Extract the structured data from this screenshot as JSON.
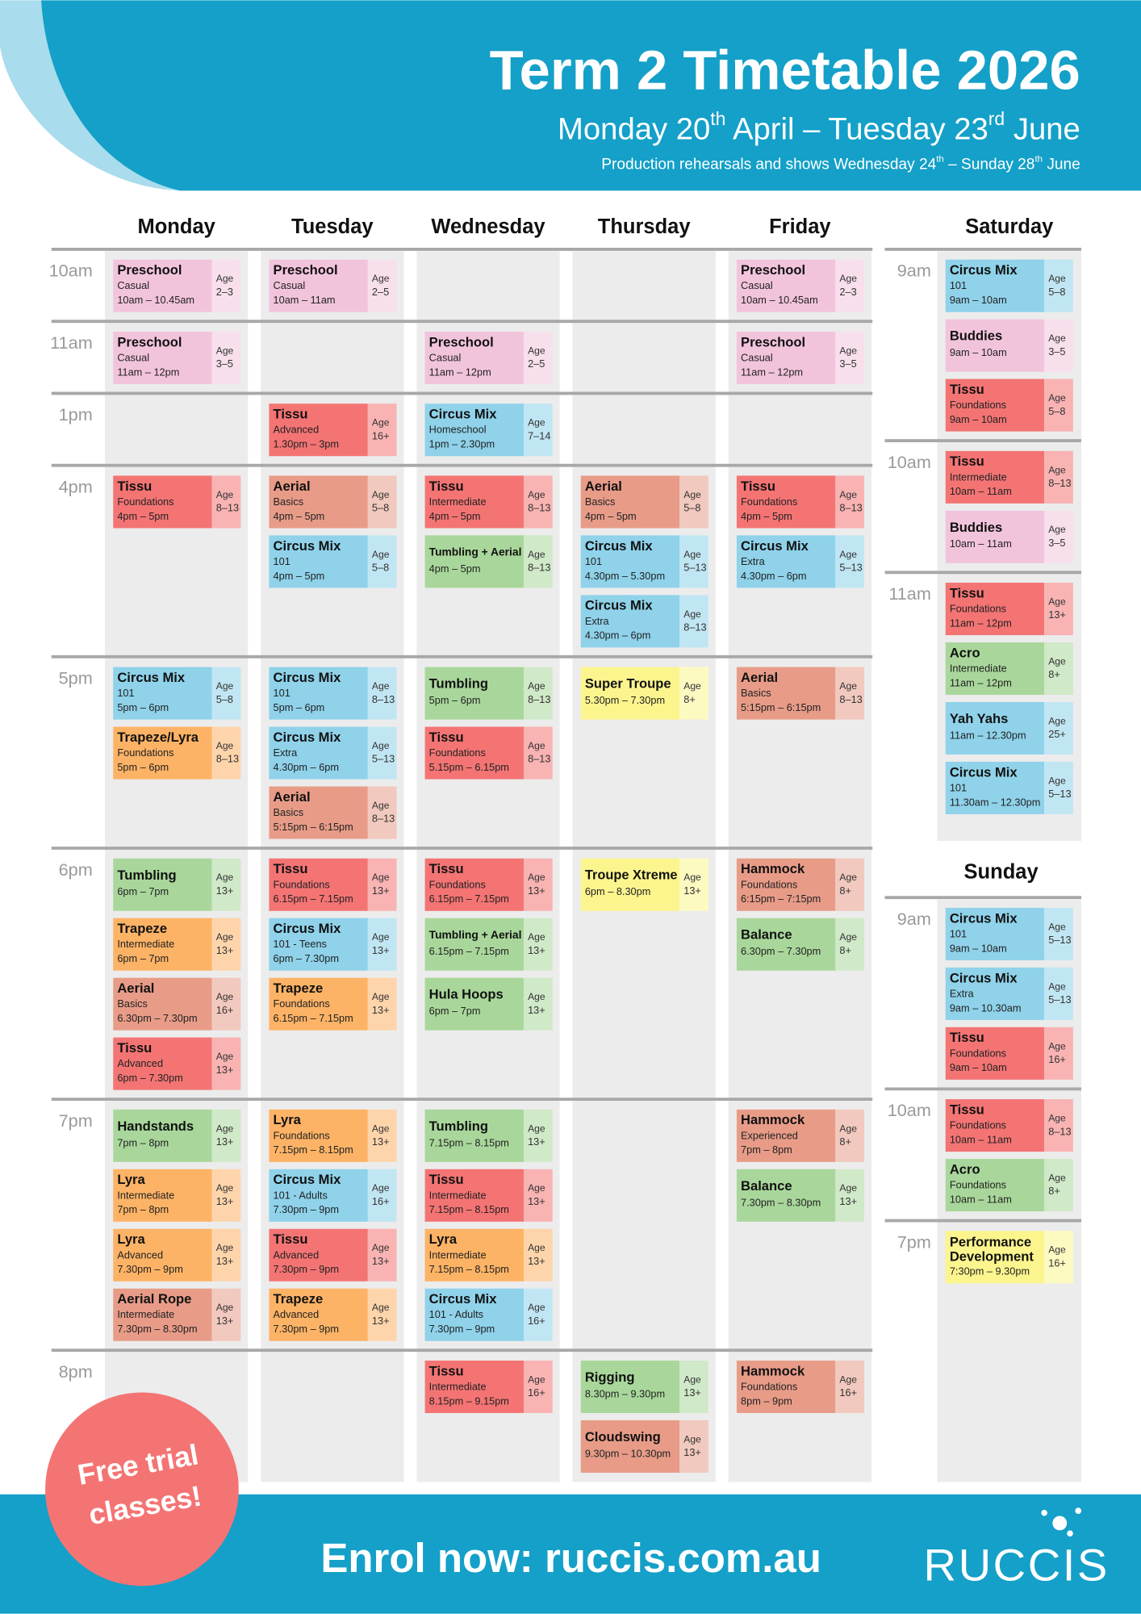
{
  "header": {
    "title": "Term 2 Timetable 2026",
    "subtitle": [
      "Monday 20",
      "th",
      " April – Tuesday 23",
      "rd",
      " June"
    ],
    "note": [
      "Production rehearsals and shows Wednesday 24",
      "th",
      " – Sunday 28",
      "th",
      " June"
    ]
  },
  "age_word": "Age",
  "weekdays": {
    "days": [
      "Monday",
      "Tuesday",
      "Wednesday",
      "Thursday",
      "Friday"
    ],
    "rows": [
      {
        "time": "10am",
        "cells": [
          [
            {
              "name": "Preschool",
              "level": "Casual",
              "time": "10am – 10.45am",
              "age": "2–3",
              "color": "#f2c4dc"
            }
          ],
          [
            {
              "name": "Preschool",
              "level": "Casual",
              "time": "10am – 11am",
              "age": "2–5",
              "color": "#f2c4dc"
            }
          ],
          [],
          [],
          [
            {
              "name": "Preschool",
              "level": "Casual",
              "time": "10am – 10.45am",
              "age": "2–3",
              "color": "#f2c4dc"
            }
          ]
        ]
      },
      {
        "time": "11am",
        "cells": [
          [
            {
              "name": "Preschool",
              "level": "Casual",
              "time": "11am – 12pm",
              "age": "3–5",
              "color": "#f2c4dc"
            }
          ],
          [],
          [
            {
              "name": "Preschool",
              "level": "Casual",
              "time": "11am – 12pm",
              "age": "2–5",
              "color": "#f2c4dc"
            }
          ],
          [],
          [
            {
              "name": "Preschool",
              "level": "Casual",
              "time": "11am – 12pm",
              "age": "3–5",
              "color": "#f2c4dc"
            }
          ]
        ]
      },
      {
        "time": "1pm",
        "cells": [
          [],
          [
            {
              "name": "Tissu",
              "level": "Advanced",
              "time": "1.30pm – 3pm",
              "age": "16+",
              "color": "#f47474"
            }
          ],
          [
            {
              "name": "Circus Mix",
              "level": "Homeschool",
              "time": "1pm – 2.30pm",
              "age": "7–14",
              "color": "#8fd2ea"
            }
          ],
          [],
          []
        ]
      },
      {
        "time": "4pm",
        "cells": [
          [
            {
              "name": "Tissu",
              "level": "Foundations",
              "time": "4pm – 5pm",
              "age": "8–13",
              "color": "#f47474"
            }
          ],
          [
            {
              "name": "Aerial",
              "level": "Basics",
              "time": "4pm – 5pm",
              "age": "5–8",
              "color": "#e89c88"
            },
            {
              "name": "Circus Mix",
              "level": "101",
              "time": "4pm – 5pm",
              "age": "5–8",
              "color": "#8fd2ea"
            }
          ],
          [
            {
              "name": "Tissu",
              "level": "Intermediate",
              "time": "4pm – 5pm",
              "age": "8–13",
              "color": "#f47474"
            },
            {
              "name": "Tumbling + Aerial",
              "time": "4pm – 5pm",
              "age": "8–13",
              "color": "#a9d79b"
            }
          ],
          [
            {
              "name": "Aerial",
              "level": "Basics",
              "time": "4pm – 5pm",
              "age": "5–8",
              "color": "#e89c88"
            },
            {
              "name": "Circus Mix",
              "level": "101",
              "time": "4.30pm – 5.30pm",
              "age": "5–13",
              "color": "#8fd2ea"
            },
            {
              "name": "Circus Mix",
              "level": "Extra",
              "time": "4.30pm – 6pm",
              "age": "8–13",
              "color": "#8fd2ea"
            }
          ],
          [
            {
              "name": "Tissu",
              "level": "Foundations",
              "time": "4pm – 5pm",
              "age": "8–13",
              "color": "#f47474"
            },
            {
              "name": "Circus Mix",
              "level": "Extra",
              "time": "4.30pm – 6pm",
              "age": "5–13",
              "color": "#8fd2ea"
            }
          ]
        ]
      },
      {
        "time": "5pm",
        "cells": [
          [
            {
              "name": "Circus Mix",
              "level": "101",
              "time": "5pm – 6pm",
              "age": "5–8",
              "color": "#8fd2ea"
            },
            {
              "name": "Trapeze/Lyra",
              "level": "Foundations",
              "time": "5pm – 6pm",
              "age": "8–13",
              "color": "#fdb366"
            }
          ],
          [
            {
              "name": "Circus Mix",
              "level": "101",
              "time": "5pm – 6pm",
              "age": "8–13",
              "color": "#8fd2ea"
            },
            {
              "name": "Circus Mix",
              "level": "Extra",
              "time": "4.30pm – 6pm",
              "age": "5–13",
              "color": "#8fd2ea"
            },
            {
              "name": "Aerial",
              "level": "Basics",
              "time": "5:15pm – 6:15pm",
              "age": "8–13",
              "color": "#e89c88"
            }
          ],
          [
            {
              "name": "Tumbling",
              "time": "5pm – 6pm",
              "age": "8–13",
              "color": "#a9d79b"
            },
            {
              "name": "Tissu",
              "level": "Foundations",
              "time": "5.15pm – 6.15pm",
              "age": "8–13",
              "color": "#f47474"
            }
          ],
          [
            {
              "name": "Super Troupe",
              "time": "5.30pm – 7.30pm",
              "age": "8+",
              "color": "#fcf58e"
            }
          ],
          [
            {
              "name": "Aerial",
              "level": "Basics",
              "time": "5:15pm – 6:15pm",
              "age": "8–13",
              "color": "#e89c88"
            }
          ]
        ]
      },
      {
        "time": "6pm",
        "cells": [
          [
            {
              "name": "Tumbling",
              "time": "6pm – 7pm",
              "age": "13+",
              "color": "#a9d79b"
            },
            {
              "name": "Trapeze",
              "level": "Intermediate",
              "time": "6pm – 7pm",
              "age": "13+",
              "color": "#fdb366"
            },
            {
              "name": "Aerial",
              "level": "Basics",
              "time": "6.30pm – 7.30pm",
              "age": "16+",
              "color": "#e89c88"
            },
            {
              "name": "Tissu",
              "level": "Advanced",
              "time": "6pm – 7.30pm",
              "age": "13+",
              "color": "#f47474"
            }
          ],
          [
            {
              "name": "Tissu",
              "level": "Foundations",
              "time": "6.15pm – 7.15pm",
              "age": "13+",
              "color": "#f47474"
            },
            {
              "name": "Circus Mix",
              "level": "101 - Teens",
              "time": "6pm – 7.30pm",
              "age": "13+",
              "color": "#8fd2ea"
            },
            {
              "name": "Trapeze",
              "level": "Foundations",
              "time": "6.15pm – 7.15pm",
              "age": "13+",
              "color": "#fdb366"
            }
          ],
          [
            {
              "name": "Tissu",
              "level": "Foundations",
              "time": "6.15pm – 7.15pm",
              "age": "13+",
              "color": "#f47474"
            },
            {
              "name": "Tumbling + Aerial",
              "time": "6.15pm – 7.15pm",
              "age": "13+",
              "color": "#a9d79b"
            },
            {
              "name": "Hula Hoops",
              "time": "6pm – 7pm",
              "age": "13+",
              "color": "#a9d79b"
            }
          ],
          [
            {
              "name": "Troupe Xtreme",
              "time": "6pm – 8.30pm",
              "age": "13+",
              "color": "#fcf58e"
            }
          ],
          [
            {
              "name": "Hammock",
              "level": "Foundations",
              "time": "6:15pm – 7:15pm",
              "age": "8+",
              "color": "#e89c88"
            },
            {
              "name": "Balance",
              "time": "6.30pm – 7.30pm",
              "age": "8+",
              "color": "#a9d79b"
            }
          ]
        ]
      },
      {
        "time": "7pm",
        "cells": [
          [
            {
              "name": "Handstands",
              "time": "7pm – 8pm",
              "age": "13+",
              "color": "#a9d79b"
            },
            {
              "name": "Lyra",
              "level": "Intermediate",
              "time": "7pm – 8pm",
              "age": "13+",
              "color": "#fdb366"
            },
            {
              "name": "Lyra",
              "level": "Advanced",
              "time": "7.30pm – 9pm",
              "age": "13+",
              "color": "#fdb366"
            },
            {
              "name": "Aerial Rope",
              "level": "Intermediate",
              "time": "7.30pm – 8.30pm",
              "age": "13+",
              "color": "#e89c88"
            }
          ],
          [
            {
              "name": "Lyra",
              "level": "Foundations",
              "time": "7.15pm – 8.15pm",
              "age": "13+",
              "color": "#fdb366"
            },
            {
              "name": "Circus Mix",
              "level": "101 - Adults",
              "time": "7.30pm – 9pm",
              "age": "16+",
              "color": "#8fd2ea"
            },
            {
              "name": "Tissu",
              "level": "Advanced",
              "time": "7.30pm – 9pm",
              "age": "13+",
              "color": "#f47474"
            },
            {
              "name": "Trapeze",
              "level": "Advanced",
              "time": "7.30pm – 9pm",
              "age": "13+",
              "color": "#fdb366"
            }
          ],
          [
            {
              "name": "Tumbling",
              "time": "7.15pm – 8.15pm",
              "age": "13+",
              "color": "#a9d79b"
            },
            {
              "name": "Tissu",
              "level": "Intermediate",
              "time": "7.15pm – 8.15pm",
              "age": "13+",
              "color": "#f47474"
            },
            {
              "name": "Lyra",
              "level": "Intermediate",
              "time": "7.15pm – 8.15pm",
              "age": "13+",
              "color": "#fdb366"
            },
            {
              "name": "Circus Mix",
              "level": "101 - Adults",
              "time": "7.30pm – 9pm",
              "age": "16+",
              "color": "#8fd2ea"
            }
          ],
          [],
          [
            {
              "name": "Hammock",
              "level": "Experienced",
              "time": "7pm – 8pm",
              "age": "8+",
              "color": "#e89c88"
            },
            {
              "name": "Balance",
              "time": "7.30pm – 8.30pm",
              "age": "13+",
              "color": "#a9d79b"
            }
          ]
        ]
      },
      {
        "time": "8pm",
        "cells": [
          [],
          [],
          [
            {
              "name": "Tissu",
              "level": "Intermediate",
              "time": "8.15pm – 9.15pm",
              "age": "16+",
              "color": "#f47474"
            }
          ],
          [
            {
              "name": "Rigging",
              "time": "8.30pm – 9.30pm",
              "age": "13+",
              "color": "#a9d79b"
            },
            {
              "name": "Cloudswing",
              "time": "9.30pm – 10.30pm",
              "age": "13+",
              "color": "#e89c88"
            }
          ],
          [
            {
              "name": "Hammock",
              "level": "Foundations",
              "time": "8pm – 9pm",
              "age": "16+",
              "color": "#e89c88"
            }
          ]
        ]
      }
    ]
  },
  "weekend": [
    {
      "day": "Saturday",
      "rows": [
        {
          "time": "9am",
          "classes": [
            {
              "name": "Circus Mix",
              "level": "101",
              "time": "9am – 10am",
              "age": "5–8",
              "color": "#8fd2ea"
            },
            {
              "name": "Buddies",
              "time": "9am – 10am",
              "age": "3–5",
              "color": "#f2c4dc"
            },
            {
              "name": "Tissu",
              "level": "Foundations",
              "time": "9am – 10am",
              "age": "5–8",
              "color": "#f47474"
            }
          ]
        },
        {
          "time": "10am",
          "classes": [
            {
              "name": "Tissu",
              "level": "Intermediate",
              "time": "10am – 11am",
              "age": "8–13",
              "color": "#f47474"
            },
            {
              "name": "Buddies",
              "time": "10am – 11am",
              "age": "3–5",
              "color": "#f2c4dc"
            }
          ]
        },
        {
          "time": "11am",
          "classes": [
            {
              "name": "Tissu",
              "level": "Foundations",
              "time": "11am – 12pm",
              "age": "13+",
              "color": "#f47474"
            },
            {
              "name": "Acro",
              "level": "Intermediate",
              "time": "11am – 12pm",
              "age": "8+",
              "color": "#a9d79b"
            },
            {
              "name": "Yah Yahs",
              "time": "11am – 12.30pm",
              "age": "25+",
              "color": "#8fd2ea"
            },
            {
              "name": "Circus Mix",
              "level": "101",
              "time": "11.30am – 12.30pm",
              "age": "5–13",
              "color": "#8fd2ea"
            }
          ]
        }
      ]
    },
    {
      "day": "Sunday",
      "rows": [
        {
          "time": "9am",
          "classes": [
            {
              "name": "Circus Mix",
              "level": "101",
              "time": "9am – 10am",
              "age": "5–13",
              "color": "#8fd2ea"
            },
            {
              "name": "Circus Mix",
              "level": "Extra",
              "time": "9am – 10.30am",
              "age": "5–13",
              "color": "#8fd2ea"
            },
            {
              "name": "Tissu",
              "level": "Foundations",
              "time": "9am – 10am",
              "age": "16+",
              "color": "#f47474"
            }
          ]
        },
        {
          "time": "10am",
          "classes": [
            {
              "name": "Tissu",
              "level": "Foundations",
              "time": "10am – 11am",
              "age": "8–13",
              "color": "#f47474"
            },
            {
              "name": "Acro",
              "level": "Foundations",
              "time": "10am – 11am",
              "age": "8+",
              "color": "#a9d79b"
            }
          ]
        },
        {
          "time": "7pm",
          "classes": [
            {
              "name": "Performance Development",
              "time": "7:30pm – 9.30pm",
              "age": "16+",
              "color": "#fcf58e"
            }
          ]
        }
      ]
    }
  ],
  "footer": {
    "badge": [
      "Free trial",
      "classes!"
    ],
    "cta": "Enrol now: ruccis.com.au",
    "logo": "RUCCIS"
  }
}
